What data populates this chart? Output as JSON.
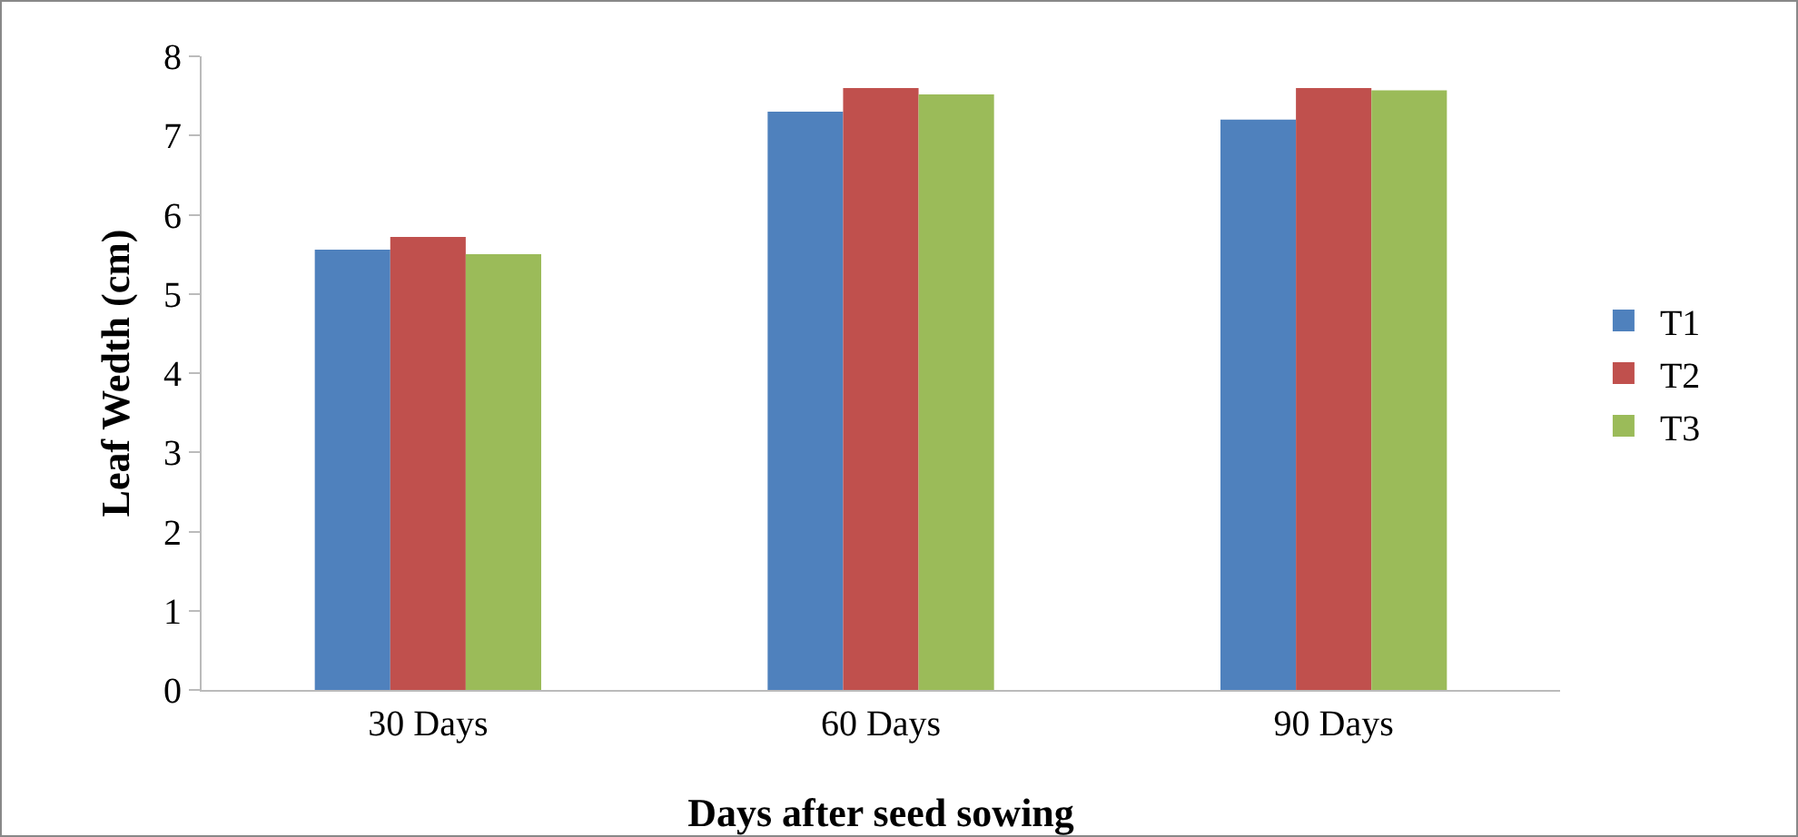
{
  "chart_data": {
    "type": "bar",
    "xlabel": "Days after seed sowing",
    "ylabel": "Leaf Wedth (cm)",
    "categories": [
      "30 Days",
      "60 Days",
      "90 Days"
    ],
    "series": [
      {
        "name": "T1",
        "color": "#4f81bd",
        "values": [
          5.56,
          7.3,
          7.2
        ]
      },
      {
        "name": "T2",
        "color": "#c0504d",
        "values": [
          5.72,
          7.6,
          7.6
        ]
      },
      {
        "name": "T3",
        "color": "#9bbb59",
        "values": [
          5.5,
          7.52,
          7.57
        ]
      }
    ],
    "ylim": [
      0,
      8
    ],
    "yticks": [
      0,
      1,
      2,
      3,
      4,
      5,
      6,
      7,
      8
    ],
    "grid": false,
    "legend": "right"
  }
}
